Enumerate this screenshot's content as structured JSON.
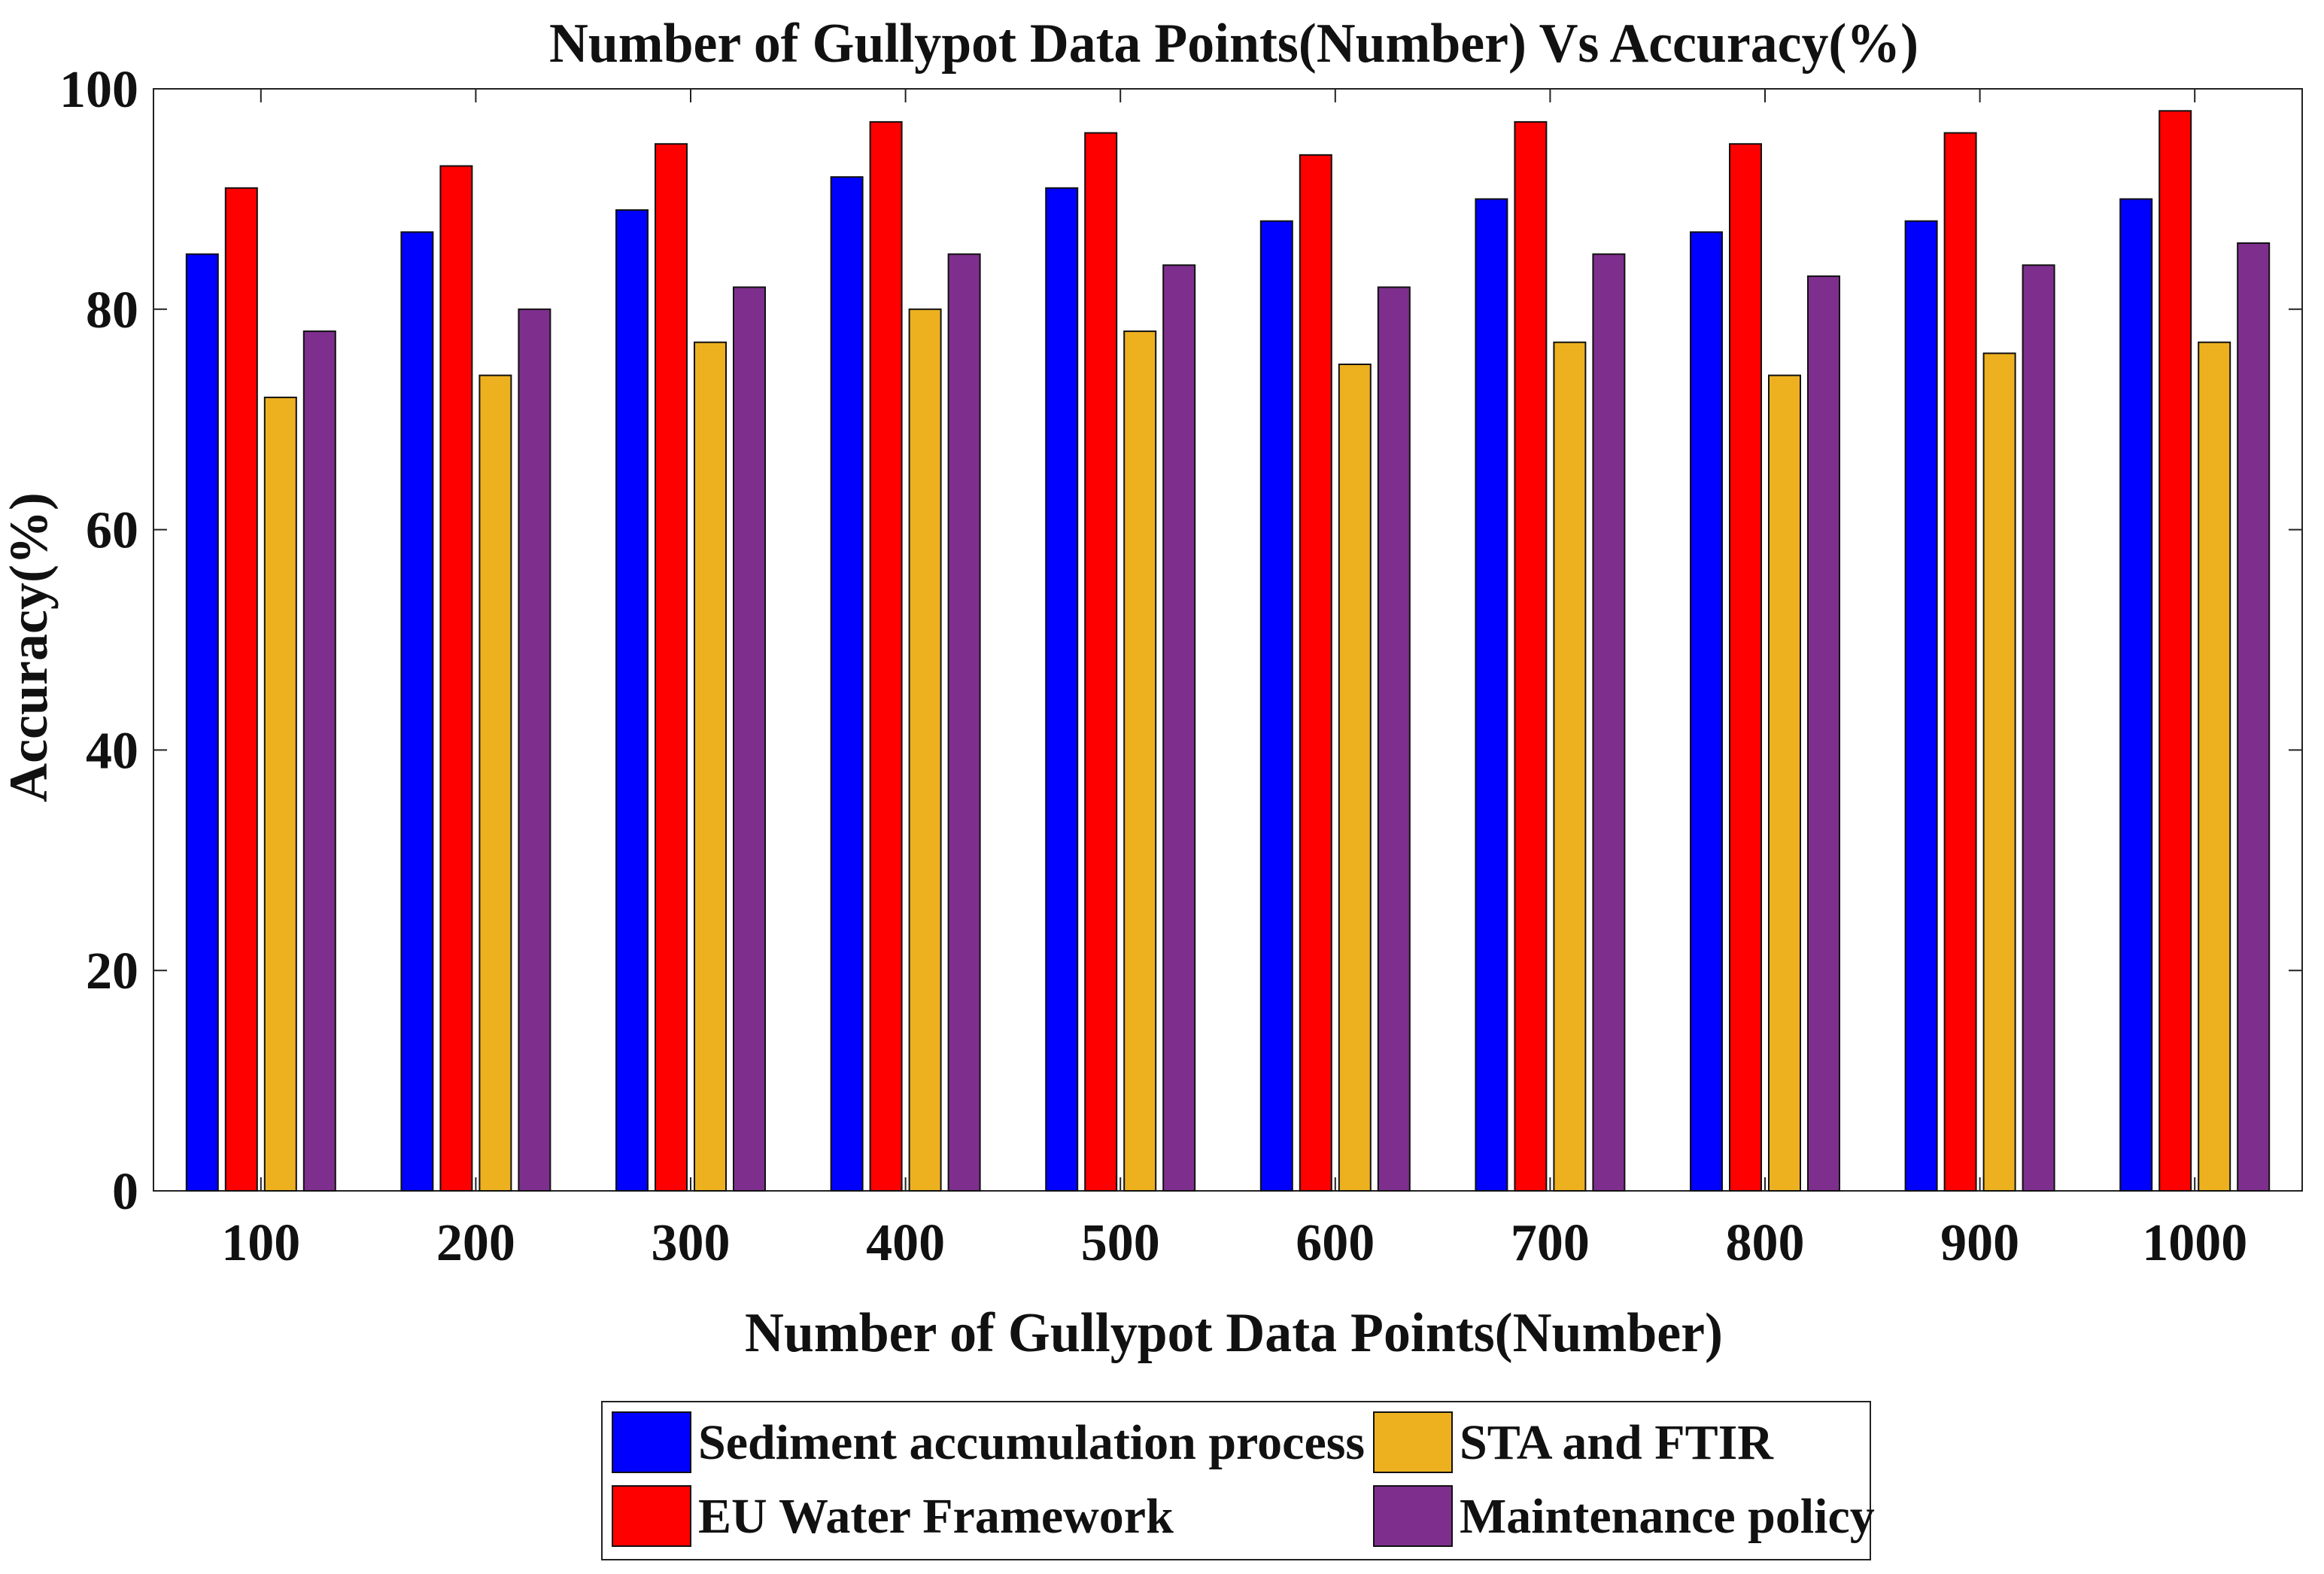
{
  "chart_data": {
    "type": "bar",
    "title": "Number of Gullypot Data Points(Number) Vs Accuracy(%)",
    "xlabel": "Number of Gullypot Data Points(Number)",
    "ylabel": "Accuracy(%)",
    "categories": [
      "100",
      "200",
      "300",
      "400",
      "500",
      "600",
      "700",
      "800",
      "900",
      "1000"
    ],
    "ylim": [
      0,
      100
    ],
    "yticks": [
      0,
      20,
      40,
      60,
      80,
      100
    ],
    "grid": false,
    "legend_position": "bottom",
    "series": [
      {
        "name": "Sediment accumulation process",
        "color": "#0000FF",
        "values": [
          85,
          87,
          89,
          92,
          91,
          88,
          90,
          87,
          88,
          90
        ]
      },
      {
        "name": "EU Water Framework",
        "color": "#FF0000",
        "values": [
          91,
          93,
          95,
          97,
          96,
          94,
          97,
          95,
          96,
          98
        ]
      },
      {
        "name": "STA and FTIR",
        "color": "#EDB120",
        "values": [
          72,
          74,
          77,
          80,
          78,
          75,
          77,
          74,
          76,
          77
        ]
      },
      {
        "name": "Maintenance policy",
        "color": "#7E2F8E",
        "values": [
          78,
          80,
          82,
          85,
          84,
          82,
          85,
          83,
          84,
          86
        ]
      }
    ]
  }
}
